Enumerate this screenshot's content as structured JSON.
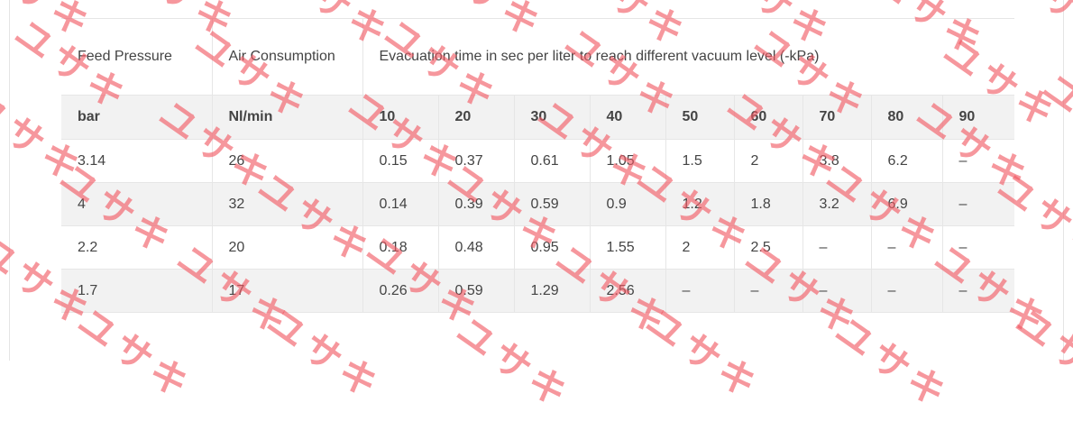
{
  "table": {
    "header": {
      "feed_pressure": "Feed Pressure",
      "air_consumption": "Air Consumption",
      "evacuation": "Evacuation time in sec per liter to reach different vacuum level (-kPa)"
    },
    "units": [
      "bar",
      "Nl/min",
      "10",
      "20",
      "30",
      "40",
      "50",
      "60",
      "70",
      "80",
      "90"
    ],
    "rows": [
      [
        "3.14",
        "26",
        "0.15",
        "0.37",
        "0.61",
        "1.05",
        "1.5",
        "2",
        "3.8",
        "6.2",
        "–"
      ],
      [
        "4",
        "32",
        "0.14",
        "0.39",
        "0.59",
        "0.9",
        "1.2",
        "1.8",
        "3.2",
        "6.9",
        "–"
      ],
      [
        "2.2",
        "20",
        "0.18",
        "0.48",
        "0.95",
        "1.55",
        "2",
        "2.5",
        "–",
        "–",
        "–"
      ],
      [
        "1.7",
        "17",
        "0.26",
        "0.59",
        "1.29",
        "2.56",
        "–",
        "–",
        "–",
        "–",
        "–"
      ]
    ]
  },
  "watermark": {
    "text": "ユサキ",
    "color": "#f25862"
  }
}
